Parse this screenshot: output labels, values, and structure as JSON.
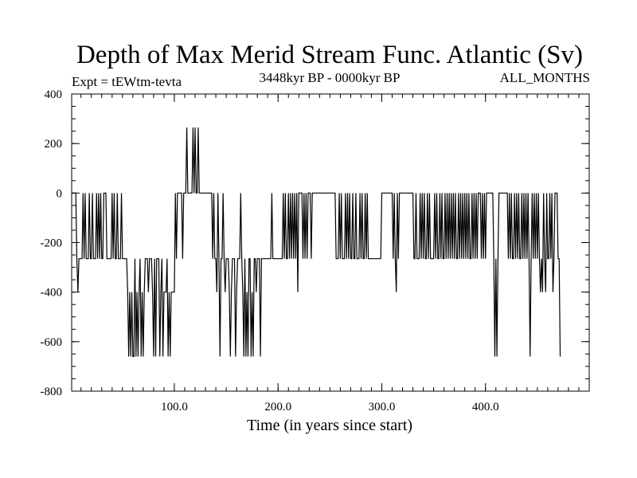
{
  "chart_data": {
    "type": "line",
    "title": "Depth of Max Merid Stream Func. Atlantic (Sv)",
    "subtitle_left": "Expt = tEWtm-tevta",
    "subtitle_center": "3448kyr BP - 0000kyr BP",
    "subtitle_right": "ALL_MONTHS",
    "xlabel": "Time (in years since start)",
    "ylabel": "",
    "xlim": [
      1,
      500
    ],
    "ylim": [
      -800,
      400
    ],
    "x_ticks": [
      {
        "value": 100,
        "label": "100.0"
      },
      {
        "value": 200,
        "label": "200.0"
      },
      {
        "value": 300,
        "label": "300.0"
      },
      {
        "value": 400,
        "label": "400.0"
      }
    ],
    "y_ticks": [
      {
        "value": 400,
        "label": "400"
      },
      {
        "value": 200,
        "label": "200"
      },
      {
        "value": 0,
        "label": "0"
      },
      {
        "value": -200,
        "label": "-200"
      },
      {
        "value": -400,
        "label": "-400"
      },
      {
        "value": -600,
        "label": "-600"
      },
      {
        "value": -800,
        "label": "-800"
      }
    ],
    "x_minor_step": 10,
    "y_minor_step": 50,
    "grid": false,
    "series": [
      {
        "color": "#000000",
        "y": [
          0,
          0,
          0,
          0,
          0,
          -265,
          -400,
          -265,
          -265,
          -265,
          -265,
          0,
          -265,
          0,
          -265,
          -265,
          -265,
          0,
          -265,
          -265,
          0,
          -265,
          -265,
          -265,
          0,
          -265,
          0,
          -265,
          0,
          -265,
          -265,
          0,
          0,
          0,
          -265,
          -265,
          -265,
          -265,
          -265,
          0,
          -265,
          0,
          -265,
          -265,
          0,
          -265,
          -265,
          -265,
          0,
          -265,
          -265,
          -265,
          -265,
          -265,
          -400,
          -660,
          -400,
          -660,
          -400,
          -660,
          -660,
          -265,
          -660,
          -400,
          -660,
          -400,
          -265,
          -660,
          -400,
          -660,
          -400,
          -265,
          -265,
          -265,
          -400,
          -265,
          -265,
          -265,
          -400,
          -660,
          -265,
          -660,
          -265,
          -265,
          -265,
          -660,
          -400,
          -265,
          -660,
          -400,
          -400,
          -400,
          -265,
          -660,
          -400,
          -660,
          -400,
          -400,
          -400,
          -400,
          0,
          -265,
          0,
          0,
          0,
          0,
          0,
          -265,
          0,
          0,
          0,
          265,
          0,
          0,
          0,
          0,
          0,
          265,
          0,
          265,
          0,
          0,
          265,
          0,
          0,
          0,
          0,
          0,
          0,
          0,
          0,
          0,
          0,
          0,
          0,
          0,
          -265,
          0,
          -265,
          -265,
          -400,
          0,
          -265,
          -660,
          -265,
          -265,
          0,
          -265,
          -400,
          -265,
          -265,
          -265,
          -400,
          -660,
          -400,
          -265,
          -265,
          -265,
          -660,
          -400,
          -265,
          -265,
          -265,
          0,
          -265,
          -400,
          -660,
          -265,
          -660,
          -400,
          -660,
          -265,
          -265,
          -660,
          -400,
          -660,
          -265,
          -265,
          -400,
          -265,
          -265,
          -265,
          -660,
          -265,
          -265,
          -265,
          -265,
          -265,
          -265,
          -265,
          -265,
          -265,
          -265,
          0,
          -265,
          -265,
          -265,
          -265,
          -265,
          -265,
          -265,
          -265,
          -265,
          -265,
          0,
          -265,
          0,
          -265,
          -265,
          0,
          -265,
          0,
          -265,
          0,
          -265,
          0,
          -265,
          0,
          -400,
          0,
          0,
          0,
          0,
          -265,
          0,
          -265,
          0,
          -265,
          0,
          0,
          0,
          -265,
          0,
          0,
          0,
          0,
          0,
          0,
          0,
          0,
          0,
          0,
          0,
          0,
          0,
          0,
          0,
          0,
          0,
          0,
          0,
          0,
          0,
          0,
          0,
          -265,
          -265,
          -265,
          0,
          -265,
          0,
          -265,
          -265,
          -265,
          0,
          -265,
          0,
          -265,
          0,
          -265,
          -265,
          0,
          -265,
          -265,
          0,
          -265,
          -265,
          -265,
          0,
          -265,
          0,
          -265,
          -265,
          0,
          -265,
          0,
          -265,
          -265,
          -265,
          -265,
          -265,
          -265,
          -265,
          -265,
          -265,
          -265,
          -265,
          -265,
          -265,
          0,
          0,
          0,
          0,
          0,
          0,
          0,
          0,
          0,
          0,
          0,
          -265,
          0,
          -265,
          -400,
          0,
          -265,
          0,
          0,
          0,
          0,
          0,
          0,
          0,
          0,
          0,
          0,
          0,
          0,
          0,
          0,
          -265,
          -265,
          0,
          -265,
          -265,
          -265,
          0,
          -265,
          0,
          -265,
          0,
          -265,
          -265,
          0,
          -265,
          0,
          -265,
          -265,
          -265,
          -265,
          0,
          -265,
          0,
          -265,
          -265,
          0,
          -265,
          0,
          -265,
          -265,
          0,
          -265,
          0,
          -265,
          0,
          -265,
          0,
          -265,
          0,
          -265,
          0,
          -265,
          -265,
          0,
          -265,
          0,
          -265,
          0,
          -265,
          0,
          -265,
          0,
          -265,
          0,
          -265,
          -265,
          0,
          -265,
          0,
          -265,
          0,
          -265,
          0,
          0,
          0,
          -265,
          0,
          -265,
          0,
          -265,
          0,
          0,
          0,
          0,
          0,
          0,
          0,
          -265,
          -660,
          -265,
          -660,
          -265,
          0,
          0,
          0,
          0,
          0,
          0,
          0,
          0,
          0,
          -265,
          0,
          -265,
          0,
          -265,
          -265,
          0,
          -265,
          0,
          -265,
          0,
          -265,
          -265,
          0,
          -265,
          0,
          -265,
          0,
          -265,
          0,
          -265,
          -660,
          -265,
          0,
          -265,
          0,
          -265,
          0,
          -265,
          0,
          -265,
          -400,
          -265,
          -400,
          0,
          -265,
          -400,
          0,
          -265,
          -265,
          0,
          -265,
          0,
          -400,
          -265,
          0,
          0,
          0,
          -265,
          -265,
          -660
        ]
      }
    ]
  }
}
